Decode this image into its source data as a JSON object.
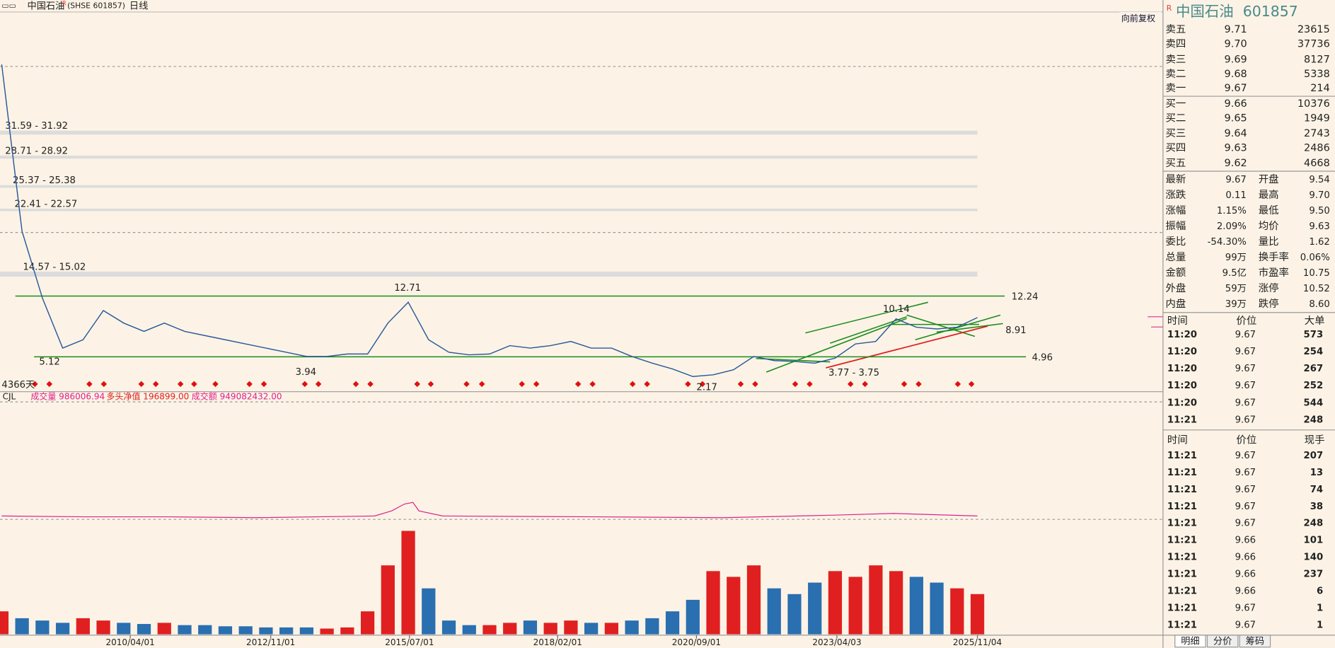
{
  "header": {
    "name": "中国石油",
    "flag": "R",
    "code": "(SHSE 601857)",
    "period": "日线"
  },
  "restore_button": "向前复权",
  "chart_data": {
    "type": "line",
    "values": [
      40,
      20,
      12,
      6,
      7,
      10.5,
      9,
      8,
      9,
      8,
      7.5,
      7,
      6.5,
      6,
      5.5,
      5,
      5,
      5.3,
      5.3,
      9,
      11.5,
      7,
      5.5,
      5.2,
      5.3,
      6.3,
      6,
      6.3,
      6.8,
      6,
      6,
      5,
      4.2,
      3.5,
      2.6,
      2.8,
      3.4,
      5,
      4.5,
      4.4,
      4.2,
      4.8,
      6.5,
      6.8,
      9.5,
      8.5,
      8.3,
      8.5,
      9.67
    ],
    "volume": [
      20,
      14,
      12,
      10,
      14,
      12,
      10,
      9,
      10,
      8,
      8,
      7,
      7,
      6,
      6,
      6,
      5,
      6,
      20,
      60,
      90,
      40,
      12,
      8,
      8,
      10,
      12,
      10,
      12,
      10,
      10,
      12,
      14,
      20,
      30,
      55,
      50,
      60,
      40,
      35,
      45,
      55,
      50,
      60,
      55,
      50,
      45,
      40,
      35
    ],
    "ylim": [
      0.78,
      46.29
    ],
    "vlim": [
      0,
      100
    ],
    "xticks": [
      "2010/04/01",
      "2012/11/01",
      "2015/07/01",
      "2018/02/01",
      "2020/09/01",
      "2023/04/03",
      "2025/11/04"
    ],
    "levels": [
      {
        "low": 31.59,
        "high": 31.92,
        "label": "31.59 - 31.92"
      },
      {
        "low": 28.71,
        "high": 28.92,
        "label": "28.71 - 28.92"
      },
      {
        "low": 25.37,
        "high": 25.38,
        "label": "25.37 - 25.38"
      },
      {
        "low": 22.41,
        "high": 22.57,
        "label": "22.41 - 22.57"
      },
      {
        "low": 14.57,
        "high": 15.02,
        "label": "14.57 - 15.02"
      }
    ],
    "trend_lines": [
      12.24,
      4.96
    ],
    "annotations": [
      "12.71",
      "5.12",
      "3.94",
      "2.17",
      "10.14",
      "3.77 - 3.75",
      "8.91",
      "4366天"
    ],
    "indicator": {
      "name": "CJL",
      "items": [
        "成交量 986006.94",
        "多头净值 196899.00",
        "成交额 949082432.00"
      ]
    }
  },
  "quote": {
    "flag": "R",
    "title": "中国石油  601857",
    "book": [
      [
        "卖五",
        "9.71",
        "23615"
      ],
      [
        "卖四",
        "9.70",
        "37736"
      ],
      [
        "卖三",
        "9.69",
        "8127"
      ],
      [
        "卖二",
        "9.68",
        "5338"
      ],
      [
        "卖一",
        "9.67",
        "214"
      ],
      [
        "买一",
        "9.66",
        "10376"
      ],
      [
        "买二",
        "9.65",
        "1949"
      ],
      [
        "买三",
        "9.64",
        "2743"
      ],
      [
        "买四",
        "9.63",
        "2486"
      ],
      [
        "买五",
        "9.62",
        "4668"
      ]
    ],
    "stats": [
      {
        "cells": [
          "最新",
          "9.67",
          "开盘",
          "9.54"
        ],
        "color": [
          "r",
          "g"
        ]
      },
      {
        "cells": [
          "涨跌",
          "0.11",
          "最高",
          "9.70"
        ],
        "color": [
          "r",
          "r"
        ]
      },
      {
        "cells": [
          "涨幅",
          "1.15%",
          "最低",
          "9.50"
        ],
        "color": [
          "r",
          "g"
        ]
      },
      {
        "cells": [
          "振幅",
          "2.09%",
          "均价",
          "9.63"
        ],
        "color": [
          "g",
          "r"
        ]
      },
      {
        "cells": [
          "委比",
          "-54.30%",
          "量比",
          "1.62"
        ],
        "color": [
          "b",
          "b"
        ]
      },
      {
        "cells": [
          "总量",
          "99万",
          "换手率",
          "0.06%"
        ],
        "color": [
          "b",
          "b"
        ]
      },
      {
        "cells": [
          "金额",
          "9.5亿",
          "市盈率",
          "10.75"
        ],
        "color": [
          "r",
          "b"
        ]
      },
      {
        "cells": [
          "外盘",
          "59万",
          "涨停",
          "10.52"
        ],
        "color": [
          "r",
          "r"
        ]
      },
      {
        "cells": [
          "内盘",
          "39万",
          "跌停",
          "8.60"
        ],
        "color": [
          "g",
          "g"
        ]
      }
    ],
    "table_a": {
      "headers": [
        "时间",
        "价位",
        "大单"
      ],
      "rows": [
        {
          "cells": [
            "11:20",
            "9.67",
            "573"
          ],
          "color": "r"
        },
        {
          "cells": [
            "11:20",
            "9.67",
            "254"
          ],
          "color": "r"
        },
        {
          "cells": [
            "11:20",
            "9.67",
            "267"
          ],
          "color": "r"
        },
        {
          "cells": [
            "11:20",
            "9.67",
            "252"
          ],
          "color": "r"
        },
        {
          "cells": [
            "11:20",
            "9.67",
            "544"
          ],
          "color": "r"
        },
        {
          "cells": [
            "11:21",
            "9.67",
            "248"
          ],
          "color": "r"
        }
      ]
    },
    "table_b": {
      "headers": [
        "时间",
        "价位",
        "现手"
      ],
      "rows": [
        {
          "cells": [
            "11:21",
            "9.67",
            "207"
          ],
          "color": "r"
        },
        {
          "cells": [
            "11:21",
            "9.67",
            "13"
          ],
          "color": "r"
        },
        {
          "cells": [
            "11:21",
            "9.67",
            "74"
          ],
          "color": "r"
        },
        {
          "cells": [
            "11:21",
            "9.67",
            "38"
          ],
          "color": "r"
        },
        {
          "cells": [
            "11:21",
            "9.67",
            "248"
          ],
          "color": "r"
        },
        {
          "cells": [
            "11:21",
            "9.66",
            "101"
          ],
          "color": "g"
        },
        {
          "cells": [
            "11:21",
            "9.66",
            "140"
          ],
          "color": "g"
        },
        {
          "cells": [
            "11:21",
            "9.66",
            "237"
          ],
          "color": "g"
        },
        {
          "cells": [
            "11:21",
            "9.66",
            "6"
          ],
          "color": "g"
        },
        {
          "cells": [
            "11:21",
            "9.67",
            "1"
          ],
          "color": "r"
        },
        {
          "cells": [
            "11:21",
            "9.67",
            "1"
          ],
          "color": "r"
        }
      ]
    },
    "tabs": [
      "明细",
      "分价",
      "筹码"
    ]
  }
}
